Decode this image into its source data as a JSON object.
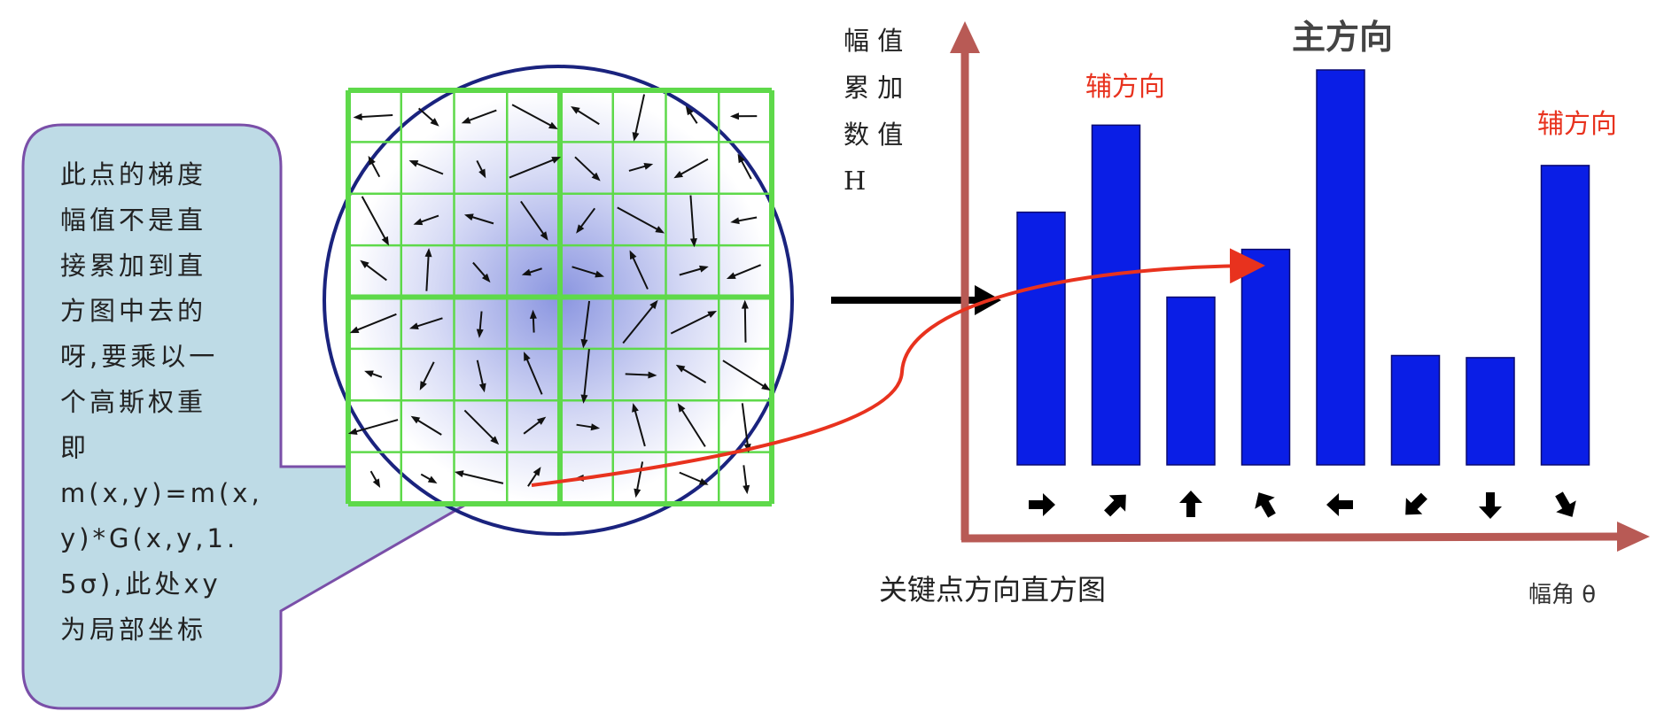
{
  "callout": {
    "lines": [
      "此点的梯度",
      "幅值不是直",
      "接累加到直",
      "方图中去的",
      "呀,要乘以一",
      "个高斯权重",
      "即",
      "m(x,y)=m(x,",
      "y)*G(x,y,1.",
      "5σ),此处xy",
      "为局部坐标"
    ],
    "fill": "#bedbe6",
    "border": "#7a4fa8"
  },
  "histogram": {
    "y_label_lines": [
      "幅 值",
      "累 加",
      "数 值",
      "H"
    ],
    "x_label": "幅角 θ",
    "caption": "关键点方向直方图",
    "main_direction_label": "主方向",
    "aux_direction_label_1": "辅方向",
    "aux_direction_label_2": "辅方向",
    "bar_color": "#0a1ee6",
    "axis_color": "#b85a55",
    "bars": [
      {
        "value": 238,
        "direction": "right-arrow"
      },
      {
        "value": 320,
        "direction": "up-right-arrow"
      },
      {
        "value": 158,
        "direction": "up-arrow"
      },
      {
        "value": 203,
        "direction": "up-left-arrow"
      },
      {
        "value": 372,
        "direction": "left-arrow"
      },
      {
        "value": 103,
        "direction": "down-left-arrow"
      },
      {
        "value": 101,
        "direction": "down-arrow"
      },
      {
        "value": 282,
        "direction": "down-right-arrow"
      }
    ]
  },
  "colors": {
    "grid": "#5ed94a",
    "circle": "#1a237e",
    "curve": "#e8321e"
  }
}
